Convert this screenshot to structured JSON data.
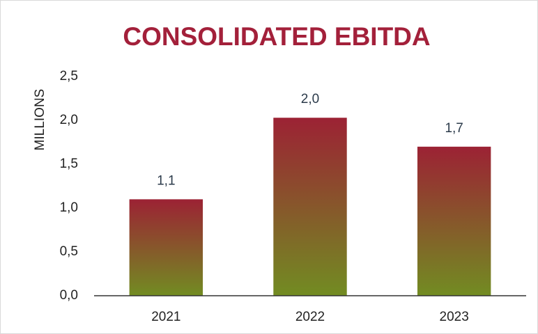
{
  "chart_data": {
    "type": "bar",
    "title": "CONSOLIDATED EBITDA",
    "ylabel": "MILLIONS",
    "categories": [
      "2021",
      "2022",
      "2023"
    ],
    "values": [
      1.1,
      2.03,
      1.7
    ],
    "value_labels": [
      "1,1",
      "2,0",
      "1,7"
    ],
    "gradient": [
      "#9c2234",
      "#728c22"
    ],
    "title_color": "#a3203a",
    "ylim": [
      0,
      2.5
    ],
    "yticks": [
      {
        "value": 0,
        "label": "0,0"
      },
      {
        "value": 0.5,
        "label": "0,5"
      },
      {
        "value": 1,
        "label": "1,0"
      },
      {
        "value": 1.5,
        "label": "1,5"
      },
      {
        "value": 2,
        "label": "2,0"
      },
      {
        "value": 2.5,
        "label": "2,5"
      }
    ],
    "grid": false
  }
}
